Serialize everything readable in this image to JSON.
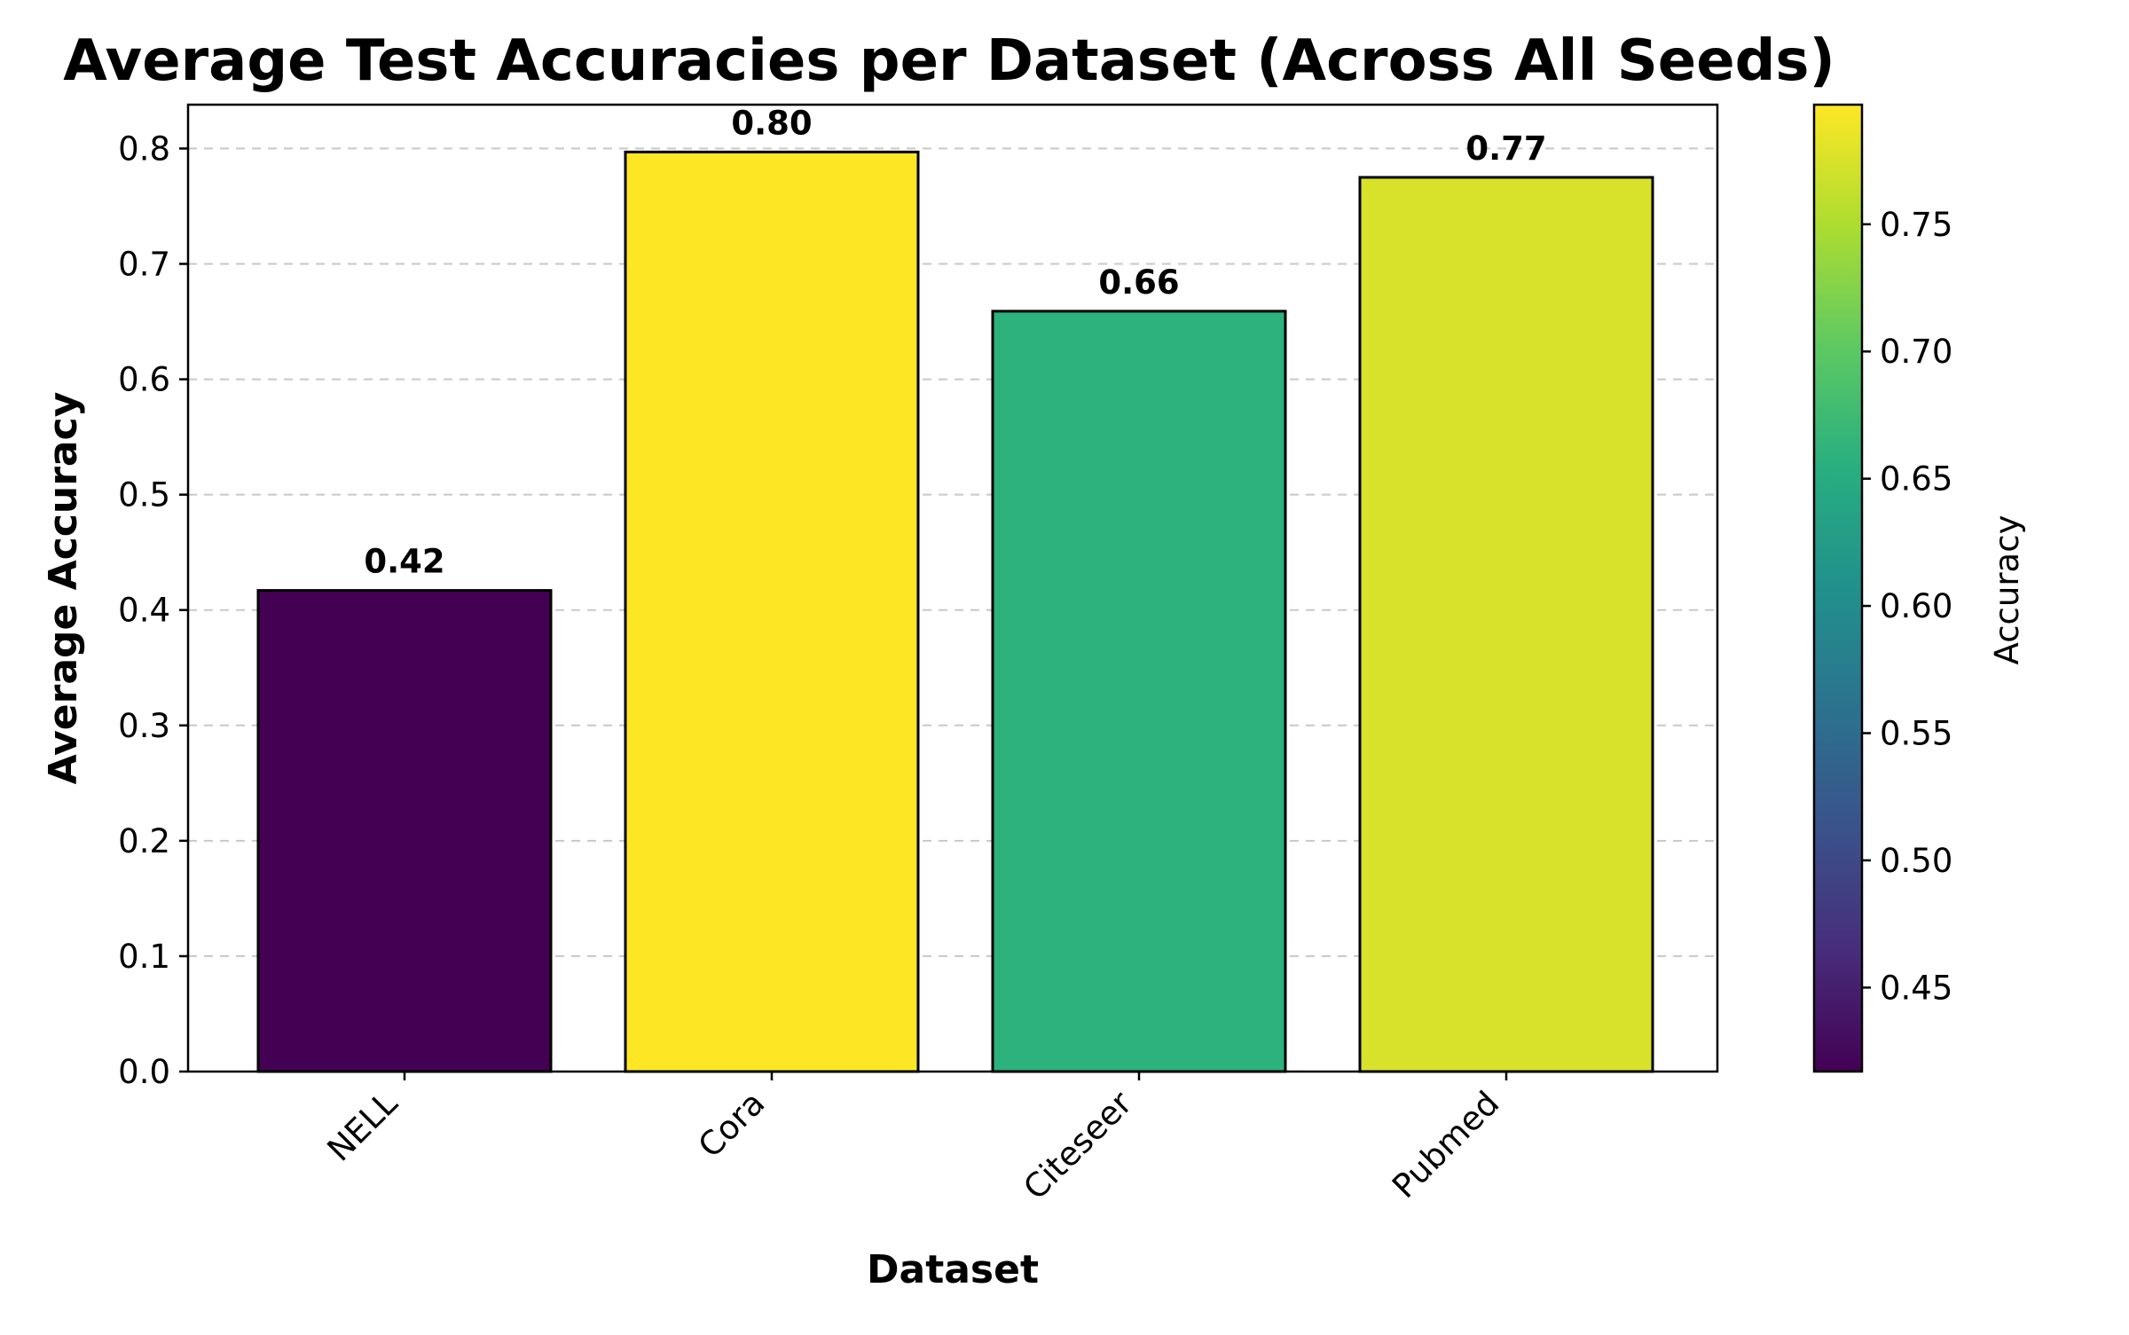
{
  "chart_data": {
    "type": "bar",
    "title": "Average Test Accuracies per Dataset (Across All Seeds)",
    "xlabel": "Dataset",
    "ylabel": "Average Accuracy",
    "categories": [
      "NELL",
      "Cora",
      "Citeseer",
      "Pubmed"
    ],
    "values": [
      0.417,
      0.797,
      0.659,
      0.775
    ],
    "value_labels": [
      "0.42",
      "0.80",
      "0.66",
      "0.77"
    ],
    "ylim": [
      0,
      0.838
    ],
    "yticks": [
      0.0,
      0.1,
      0.2,
      0.3,
      0.4,
      0.5,
      0.6,
      0.7,
      0.8
    ],
    "ytick_labels": [
      "0.0",
      "0.1",
      "0.2",
      "0.3",
      "0.4",
      "0.5",
      "0.6",
      "0.7",
      "0.8"
    ],
    "grid": "y-dashed",
    "bar_edge_color": "#000000",
    "grid_color": "#c8c8c8",
    "colormap": "viridis",
    "colorbar": {
      "label": "Accuracy",
      "range": [
        0.417,
        0.797
      ],
      "ticks": [
        0.45,
        0.5,
        0.55,
        0.6,
        0.65,
        0.7,
        0.75
      ],
      "tick_labels": [
        "0.45",
        "0.50",
        "0.55",
        "0.60",
        "0.65",
        "0.70",
        "0.75"
      ]
    }
  }
}
